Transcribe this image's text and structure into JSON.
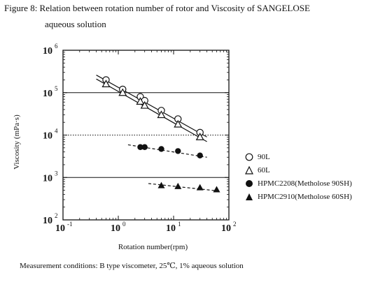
{
  "title": {
    "line1": "Figure 8: Relation between rotation number of rotor and Viscosity of SANGELOSE",
    "line2": "aqueous solution"
  },
  "footnote": "Measurement conditions: B type viscometer, 25℃, 1% aqueous solution",
  "chart_data": {
    "type": "scatter",
    "xscale": "log",
    "yscale": "log",
    "xlim": [
      0.1,
      100
    ],
    "ylim": [
      100,
      1000000
    ],
    "xlabel": "Rotation number(rpm)",
    "ylabel": "Viscosity (mPa·s)",
    "xticks": [
      {
        "value": 0.1,
        "base": "10",
        "exp": "-1"
      },
      {
        "value": 1,
        "base": "10",
        "exp": "0"
      },
      {
        "value": 10,
        "base": "10",
        "exp": "1"
      },
      {
        "value": 100,
        "base": "10",
        "exp": "2"
      }
    ],
    "yticks": [
      {
        "value": 100,
        "base": "10",
        "exp": "2"
      },
      {
        "value": 1000,
        "base": "10",
        "exp": "3"
      },
      {
        "value": 10000,
        "base": "10",
        "exp": "4"
      },
      {
        "value": 100000,
        "base": "10",
        "exp": "5"
      },
      {
        "value": 1000000,
        "base": "10",
        "exp": "6"
      }
    ],
    "gridlines_y": [
      {
        "value": 1000,
        "style": "solid"
      },
      {
        "value": 10000,
        "style": "dotted"
      },
      {
        "value": 100000,
        "style": "solid"
      }
    ],
    "legend_position": "lower-right",
    "series": [
      {
        "name": "90L",
        "marker": "open-circle",
        "fit": "solid",
        "points": [
          [
            0.6,
            200000
          ],
          [
            1.2,
            120000
          ],
          [
            2.5,
            80000
          ],
          [
            3,
            65000
          ],
          [
            6,
            38000
          ],
          [
            12,
            24000
          ],
          [
            30,
            11500
          ]
        ],
        "fit_line": [
          [
            0.4,
            260000
          ],
          [
            40,
            9000
          ]
        ]
      },
      {
        "name": "60L",
        "marker": "open-triangle",
        "fit": "solid",
        "points": [
          [
            0.6,
            160000
          ],
          [
            1.2,
            100000
          ],
          [
            2.5,
            62000
          ],
          [
            3,
            50000
          ],
          [
            6,
            30000
          ],
          [
            12,
            18000
          ],
          [
            30,
            9000
          ]
        ],
        "fit_line": [
          [
            0.4,
            210000
          ],
          [
            40,
            7000
          ]
        ]
      },
      {
        "name": "HPMC2208(Metholose 90SH)",
        "marker": "filled-circle",
        "fit": "dashed",
        "points": [
          [
            2.5,
            5200
          ],
          [
            3,
            5200
          ],
          [
            6,
            4700
          ],
          [
            12,
            4200
          ],
          [
            30,
            3300
          ]
        ],
        "fit_line": [
          [
            1.5,
            5900
          ],
          [
            40,
            3000
          ]
        ]
      },
      {
        "name": "HPMC2910(Metholose 60SH)",
        "marker": "filled-triangle",
        "fit": "dashed",
        "points": [
          [
            6,
            650
          ],
          [
            12,
            620
          ],
          [
            30,
            580
          ],
          [
            60,
            520
          ]
        ],
        "fit_line": [
          [
            3.5,
            720
          ],
          [
            65,
            480
          ]
        ]
      }
    ]
  }
}
